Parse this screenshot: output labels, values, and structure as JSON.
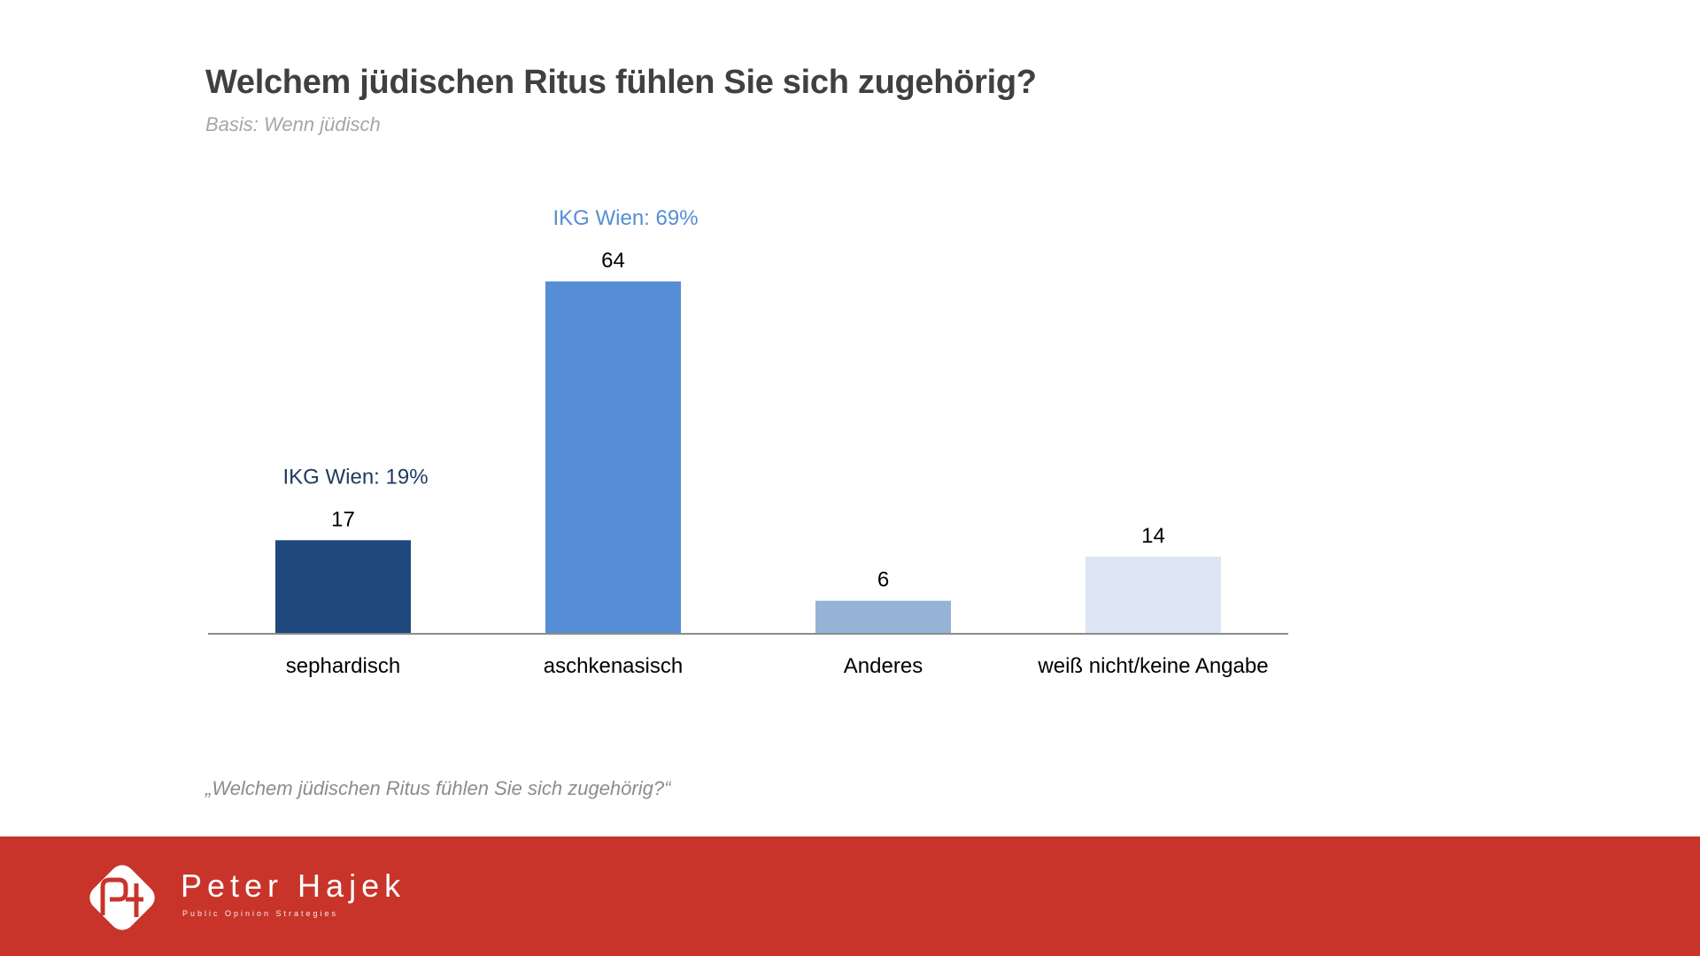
{
  "header": {
    "title": "Welchem jüdischen Ritus fühlen Sie sich zugehörig?",
    "subtitle": "Basis: Wenn jüdisch"
  },
  "footnote": "„Welchem jüdischen Ritus fühlen Sie sich zugehörig?“",
  "footer": {
    "brand": "Peter Hajek",
    "tagline": "Public Opinion Strategies",
    "logo_icon": "ph-monogram-logo-icon",
    "background_color": "#c8342a"
  },
  "chart_data": {
    "type": "bar",
    "title": "Welchem jüdischen Ritus fühlen Sie sich zugehörig?",
    "subtitle": "Basis: Wenn jüdisch",
    "xlabel": "",
    "ylabel": "",
    "ylim": [
      0,
      64
    ],
    "grid": false,
    "legend": "none",
    "categories": [
      "sephardisch",
      "aschkenasisch",
      "Anderes",
      "weiß nicht/keine Angabe"
    ],
    "values": [
      17,
      64,
      6,
      14
    ],
    "colors": [
      "#1f497d",
      "#558ed5",
      "#95b3d7",
      "#dce6f2"
    ],
    "annotations": [
      {
        "category": "sephardisch",
        "text": "IKG Wien: 19%",
        "color": "#1f3a5f"
      },
      {
        "category": "aschkenasisch",
        "text": "IKG Wien: 69%",
        "color": "#558ed5"
      }
    ]
  }
}
